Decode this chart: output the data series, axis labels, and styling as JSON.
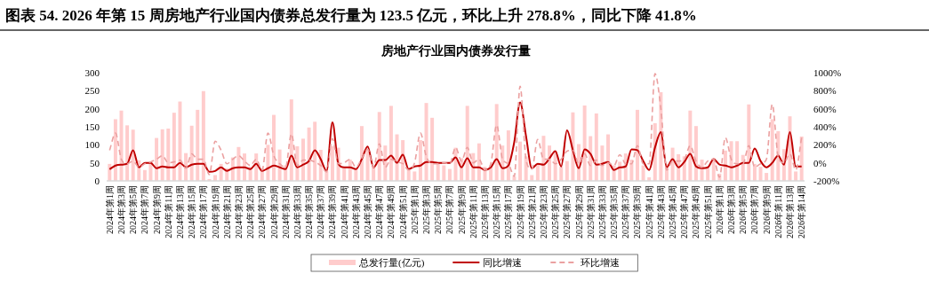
{
  "chart_data": {
    "type": "bar",
    "title": "图表 54. 2026 年第 15 周房地产行业国内债券总发行量为 123.5 亿元，环比上升 278.8%，同比下降 41.8%",
    "subtitle": "房地产行业国内债券发行量",
    "categories": [
      "2024年第1周",
      null,
      "2024年第3周",
      null,
      "2024年第5周",
      null,
      "2024年第7周",
      null,
      "2024年第9周",
      null,
      "2024年第11周",
      null,
      "2024年第13周",
      null,
      "2024年第15周",
      null,
      "2024年第17周",
      null,
      "2024年第19周",
      null,
      "2024年第21周",
      null,
      "2024年第23周",
      null,
      "2024年第25周",
      null,
      "2024年第27周",
      null,
      "2024年第29周",
      null,
      "2024年第31周",
      null,
      "2024年第33周",
      null,
      "2024年第35周",
      null,
      "2024年第37周",
      null,
      "2024年第39周",
      null,
      "2024年第41周",
      null,
      "2024年第43周",
      null,
      "2024年第45周",
      null,
      "2024年第47周",
      null,
      "2024年第49周",
      null,
      "2024年第51周",
      null,
      "2025年第1周",
      null,
      "2025年第3周",
      null,
      "2025年第5周",
      null,
      "2025年第7周",
      null,
      "2025年第9周",
      null,
      "2025年第11周",
      null,
      "2025年第13周",
      null,
      "2025年第15周",
      null,
      "2025年第17周",
      null,
      "2025年第19周",
      null,
      "2025年第21周",
      null,
      "2025年第23周",
      null,
      "2025年第25周",
      null,
      "2025年第27周",
      null,
      "2025年第29周",
      null,
      "2025年第31周",
      null,
      "2025年第33周",
      null,
      "2025年第35周",
      null,
      "2025年第37周",
      null,
      "2025年第39周",
      null,
      "2025年第41周",
      null,
      "2025年第43周",
      null,
      "2025年第45周",
      null,
      "2025年第47周",
      null,
      "2025年第49周",
      null,
      "2025年第51周",
      null,
      "2026年第1周",
      null,
      "2026年第3周",
      null,
      "2026年第5周",
      null,
      "2026年第7周",
      null,
      "2026年第9周",
      null,
      "2026年第11周",
      null,
      "2026年第13周",
      null,
      "2026年第14周"
    ],
    "series": [
      {
        "name": "总发行量(亿元)",
        "color": "#ffcccc",
        "values": [
          47,
          171,
          195,
          154,
          142,
          57,
          30,
          53,
          119,
          143,
          145,
          189,
          220,
          77,
          153,
          197,
          249,
          5,
          16,
          47,
          35,
          65,
          94,
          76,
          39,
          76,
          35,
          100,
          183,
          87,
          43,
          226,
          96,
          117,
          148,
          164,
          86,
          26,
          96,
          92,
          35,
          59,
          35,
          152,
          88,
          39,
          191,
          98,
          208,
          129,
          113,
          30,
          26,
          113,
          216,
          175,
          47,
          43,
          33,
          92,
          63,
          208,
          77,
          104,
          39,
          43,
          213,
          98,
          140,
          12,
          109,
          68,
          16,
          47,
          125,
          98,
          84,
          39,
          55,
          190,
          102,
          209,
          124,
          187,
          98,
          129,
          43,
          53,
          76,
          59,
          197,
          43,
          10,
          160,
          246,
          47,
          92,
          74,
          68,
          195,
          152,
          59,
          35,
          63,
          20,
          84,
          110,
          110,
          72,
          212,
          47,
          39,
          22,
          171,
          138,
          88,
          179,
          26,
          123
        ]
      },
      {
        "name": "同比增速",
        "type": "line",
        "axis": "y2",
        "color": "#c00000",
        "line_style": "solid",
        "values": [
          -70,
          -30,
          -20,
          -10,
          140,
          -50,
          0,
          0,
          -60,
          -40,
          -50,
          -50,
          0,
          -50,
          -20,
          -10,
          -10,
          -100,
          -90,
          -50,
          -90,
          -60,
          -50,
          -50,
          -70,
          -10,
          -90,
          -60,
          -30,
          -50,
          -70,
          80,
          -50,
          -20,
          20,
          140,
          40,
          -90,
          450,
          -10,
          -50,
          -50,
          -70,
          40,
          180,
          -50,
          30,
          30,
          80,
          0,
          90,
          -70,
          -40,
          -30,
          10,
          10,
          0,
          0,
          0,
          60,
          -50,
          50,
          -50,
          -50,
          -80,
          -50,
          40,
          -60,
          -30,
          230,
          670,
          300,
          -60,
          -10,
          -20,
          50,
          130,
          -40,
          360,
          140,
          -60,
          150,
          100,
          -20,
          -10,
          10,
          -80,
          -50,
          -40,
          150,
          140,
          20,
          -80,
          170,
          340,
          -50,
          40,
          -50,
          10,
          100,
          -40,
          -60,
          -50,
          40,
          -20,
          -30,
          -50,
          -30,
          0,
          0,
          160,
          20,
          -50,
          0,
          80,
          -20,
          340,
          -40,
          -40
        ]
      },
      {
        "name": "环比增速",
        "type": "line",
        "axis": "y2",
        "color": "#eba0a0",
        "line_style": "dashed",
        "values": [
          140,
          330,
          40,
          -10,
          20,
          -50,
          -10,
          10,
          40,
          80,
          0,
          10,
          30,
          -60,
          100,
          40,
          40,
          -130,
          240,
          140,
          -10,
          40,
          80,
          20,
          -30,
          40,
          -80,
          330,
          80,
          -10,
          -50,
          320,
          -30,
          30,
          30,
          10,
          -30,
          -100,
          270,
          -10,
          0,
          40,
          -50,
          50,
          150,
          -50,
          210,
          -50,
          40,
          10,
          -10,
          -80,
          0,
          330,
          70,
          -10,
          -10,
          0,
          -10,
          170,
          20,
          170,
          0,
          40,
          -80,
          -10,
          420,
          40,
          -10,
          -150,
          850,
          40,
          -70,
          260,
          40,
          40,
          -10,
          40,
          130,
          140,
          -10,
          100,
          -30,
          30,
          -30,
          0,
          -30,
          90,
          -10,
          -10,
          190,
          -10,
          -10,
          990,
          600,
          -80,
          20,
          20,
          40,
          190,
          20,
          -50,
          20,
          40,
          -160,
          280,
          40,
          -10,
          -10,
          190,
          -50,
          -10,
          40,
          650,
          70,
          0,
          100,
          -80,
          280
        ]
      }
    ],
    "ylim": [
      0,
      300
    ],
    "yticks": [
      0,
      50,
      100,
      150,
      200,
      250,
      300
    ],
    "y2lim": [
      -200,
      1000
    ],
    "y2ticks": [
      {
        "value": -200,
        "label": "-200%"
      },
      {
        "value": 0,
        "label": "0%"
      },
      {
        "value": 200,
        "label": "200%"
      },
      {
        "value": 400,
        "label": "400%"
      },
      {
        "value": 600,
        "label": "600%"
      },
      {
        "value": 800,
        "label": "800%"
      },
      {
        "value": 1000,
        "label": "1000%"
      }
    ],
    "legend": "bottom",
    "grid": false
  }
}
